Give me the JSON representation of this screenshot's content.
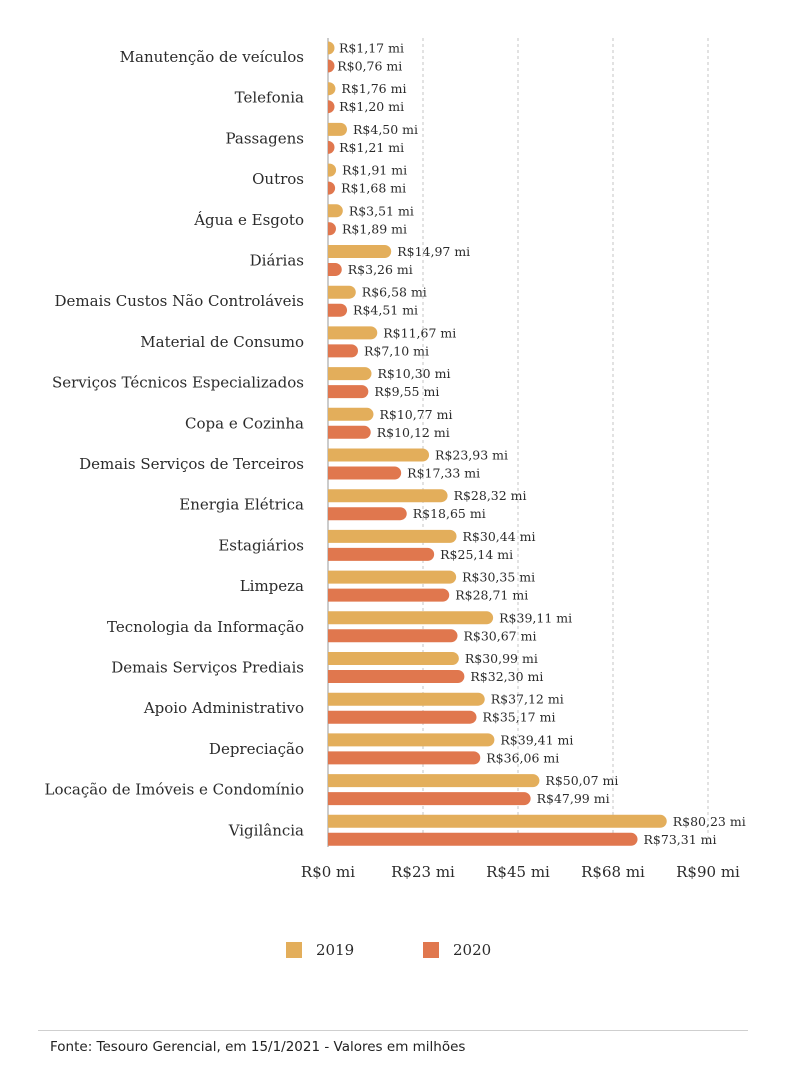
{
  "chart_data": {
    "type": "bar",
    "orientation": "horizontal",
    "categories": [
      "Manutenção de veículos",
      "Telefonia",
      "Passagens",
      "Outros",
      "Água e Esgoto",
      "Diárias",
      "Demais Custos Não Controláveis",
      "Material de Consumo",
      "Serviços Técnicos Especializados",
      "Copa e Cozinha",
      "Demais Serviços de Terceiros",
      "Energia Elétrica",
      "Estagiários",
      "Limpeza",
      "Tecnologia da Informação",
      "Demais Serviços Prediais",
      "Apoio Administrativo",
      "Depreciação",
      "Locação de Imóveis e Condomínio",
      "Vigilância"
    ],
    "series": [
      {
        "name": "2019",
        "color": "#E3AE5B",
        "values": [
          1.17,
          1.76,
          4.5,
          1.91,
          3.51,
          14.97,
          6.58,
          11.67,
          10.3,
          10.77,
          23.93,
          28.32,
          30.44,
          30.35,
          39.11,
          30.99,
          37.12,
          39.41,
          50.07,
          80.23
        ],
        "labels": [
          "R$1,17 mi",
          "R$1,76 mi",
          "R$4,50 mi",
          "R$1,91 mi",
          "R$3,51 mi",
          "R$14,97 mi",
          "R$6,58 mi",
          "R$11,67 mi",
          "R$10,30 mi",
          "R$10,77 mi",
          "R$23,93 mi",
          "R$28,32 mi",
          "R$30,44 mi",
          "R$30,35 mi",
          "R$39,11 mi",
          "R$30,99 mi",
          "R$37,12 mi",
          "R$39,41 mi",
          "R$50,07 mi",
          "R$80,23 mi"
        ]
      },
      {
        "name": "2020",
        "color": "#E0774E",
        "values": [
          0.76,
          1.2,
          1.21,
          1.68,
          1.89,
          3.26,
          4.51,
          7.1,
          9.55,
          10.12,
          17.33,
          18.65,
          25.14,
          28.71,
          30.67,
          32.3,
          35.17,
          36.06,
          47.99,
          73.31
        ],
        "labels": [
          "R$0,76 mi",
          "R$1,20 mi",
          "R$1,21 mi",
          "R$1,68 mi",
          "R$1,89 mi",
          "R$3,26 mi",
          "R$4,51 mi",
          "R$7,10 mi",
          "R$9,55 mi",
          "R$10,12 mi",
          "R$17,33 mi",
          "R$18,65 mi",
          "R$25,14 mi",
          "R$28,71 mi",
          "R$30,67 mi",
          "R$32,30 mi",
          "R$35,17 mi",
          "R$36,06 mi",
          "R$47,99 mi",
          "R$73,31 mi"
        ]
      }
    ],
    "xlim": [
      0,
      90
    ],
    "x_ticks": [
      0,
      22.5,
      45,
      67.5,
      90
    ],
    "x_tick_labels": [
      "R$0 mi",
      "R$23 mi",
      "R$45 mi",
      "R$68 mi",
      "R$90 mi"
    ],
    "grid": "vertical dashed",
    "legend_placement": "bottom-center"
  },
  "legend": {
    "items": [
      {
        "label": "2019",
        "color": "#E3AE5B"
      },
      {
        "label": "2020",
        "color": "#E0774E"
      }
    ]
  },
  "footer": {
    "source": "Fonte: Tesouro Gerencial, em 15/1/2021 -  Valores em milhões"
  }
}
